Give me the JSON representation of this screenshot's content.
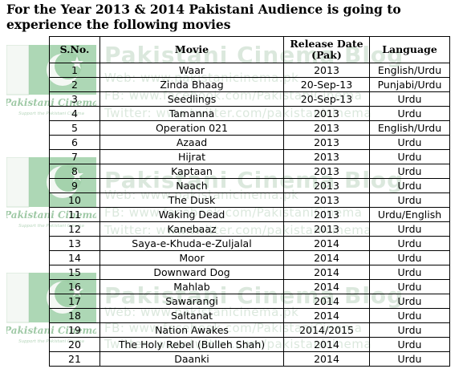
{
  "title": "For the Year 2013 & 2014 Pakistani Audience is going to experience the following movies",
  "watermark": {
    "brand": "Pakistani Cinema",
    "tagline": "Support the Pakistani Cinema",
    "blog": "Pakistani Cinema Blog",
    "web": "Web: www.pakistanicinema.pk",
    "fb": "FB: www.facebook.com/PakistaniCinema",
    "twitter": "Twitter: www.twitter.com/pakistanicinema",
    "colors": {
      "green": "#8fc79a",
      "white": "#f4f8f4"
    }
  },
  "table": {
    "headers": {
      "sno": "S.No.",
      "movie": "Movie",
      "release_line1": "Release Date",
      "release_line2": "(Pak)",
      "language": "Language"
    },
    "rows": [
      {
        "sno": "1",
        "movie": "Waar",
        "release": "2013",
        "language": "English/Urdu"
      },
      {
        "sno": "2",
        "movie": "Zinda Bhaag",
        "release": "20-Sep-13",
        "language": "Punjabi/Urdu"
      },
      {
        "sno": "3",
        "movie": "Seedlings",
        "release": "20-Sep-13",
        "language": "Urdu"
      },
      {
        "sno": "4",
        "movie": "Tamanna",
        "release": "2013",
        "language": "Urdu"
      },
      {
        "sno": "5",
        "movie": "Operation 021",
        "release": "2013",
        "language": "English/Urdu"
      },
      {
        "sno": "6",
        "movie": "Azaad",
        "release": "2013",
        "language": "Urdu"
      },
      {
        "sno": "7",
        "movie": "Hijrat",
        "release": "2013",
        "language": "Urdu"
      },
      {
        "sno": "8",
        "movie": "Kaptaan",
        "release": "2013",
        "language": "Urdu"
      },
      {
        "sno": "9",
        "movie": "Naach",
        "release": "2013",
        "language": "Urdu"
      },
      {
        "sno": "10",
        "movie": "The Dusk",
        "release": "2013",
        "language": "Urdu"
      },
      {
        "sno": "11",
        "movie": "Waking Dead",
        "release": "2013",
        "language": "Urdu/English"
      },
      {
        "sno": "12",
        "movie": "Kanebaaz",
        "release": "2013",
        "language": "Urdu"
      },
      {
        "sno": "13",
        "movie": "Saya-e-Khuda-e-Zuljalal",
        "release": "2014",
        "language": "Urdu"
      },
      {
        "sno": "14",
        "movie": "Moor",
        "release": "2014",
        "language": "Urdu"
      },
      {
        "sno": "15",
        "movie": "Downward Dog",
        "release": "2014",
        "language": "Urdu"
      },
      {
        "sno": "16",
        "movie": "Mahlab",
        "release": "2014",
        "language": "Urdu"
      },
      {
        "sno": "17",
        "movie": "Sawarangi",
        "release": "2014",
        "language": "Urdu"
      },
      {
        "sno": "18",
        "movie": "Saltanat",
        "release": "2014",
        "language": "Urdu"
      },
      {
        "sno": "19",
        "movie": "Nation Awakes",
        "release": "2014/2015",
        "language": "Urdu"
      },
      {
        "sno": "20",
        "movie": "The Holy Rebel (Bulleh Shah)",
        "release": "2014",
        "language": "Urdu"
      },
      {
        "sno": "21",
        "movie": "Daanki",
        "release": "2014",
        "language": "Urdu"
      }
    ]
  }
}
